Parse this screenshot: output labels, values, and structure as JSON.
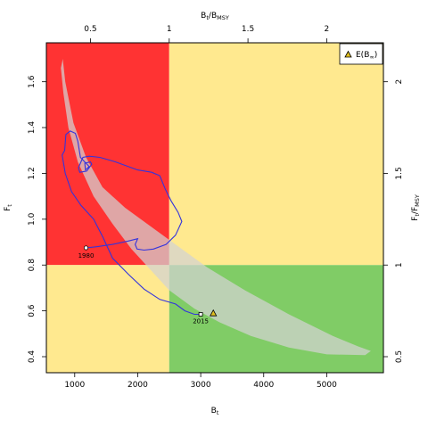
{
  "chart_data": {
    "type": "line",
    "title": "",
    "xlabel": "B",
    "xlabel_sub": "t",
    "ylabel": "F",
    "ylabel_sub": "t",
    "top_axis_label": {
      "main1": "B",
      "sub1": "t",
      "sep": "/B",
      "sub2": "MSY"
    },
    "right_axis_label": {
      "main1": "F",
      "sub1": "t",
      "sep": "/F",
      "sub2": "MSY"
    },
    "xlim": [
      550,
      5900
    ],
    "ylim": [
      0.33,
      1.77
    ],
    "bmsy": 2500,
    "fmsy": 0.8,
    "x_ticks": [
      1000,
      2000,
      3000,
      4000,
      5000
    ],
    "x_tick_labels": [
      "1000",
      "2000",
      "3000",
      "4000",
      "5000"
    ],
    "y_ticks": [
      0.4,
      0.6,
      0.8,
      1.0,
      1.2,
      1.4,
      1.6
    ],
    "y_tick_labels": [
      "0.4",
      "0.6",
      "0.8",
      "1.0",
      "1.2",
      "1.4",
      "1.6"
    ],
    "top_ticks": [
      0.5,
      1,
      1.5,
      2
    ],
    "top_tick_labels": [
      "0.5",
      "1",
      "1.5",
      "2"
    ],
    "right_ticks": [
      0.5,
      1,
      1.5,
      2
    ],
    "right_tick_labels": [
      "0.5",
      "1",
      "1.5",
      "2"
    ],
    "zones": {
      "red": "#ff3333",
      "yellow": "#ffe98f",
      "green": "#80cc66",
      "ellipse_fill": "#d3d3d3",
      "line_color": "#3333dd"
    },
    "trajectory": [
      [
        1180,
        0.875
      ],
      [
        1350,
        0.88
      ],
      [
        1600,
        0.89
      ],
      [
        1850,
        0.905
      ],
      [
        2000,
        0.915
      ],
      [
        1960,
        0.89
      ],
      [
        1990,
        0.87
      ],
      [
        2100,
        0.865
      ],
      [
        2250,
        0.87
      ],
      [
        2450,
        0.89
      ],
      [
        2600,
        0.93
      ],
      [
        2700,
        0.99
      ],
      [
        2640,
        1.03
      ],
      [
        2530,
        1.08
      ],
      [
        2440,
        1.13
      ],
      [
        2350,
        1.19
      ],
      [
        2220,
        1.205
      ],
      [
        2000,
        1.215
      ],
      [
        1650,
        1.25
      ],
      [
        1400,
        1.27
      ],
      [
        1230,
        1.275
      ],
      [
        1130,
        1.27
      ],
      [
        1060,
        1.225
      ],
      [
        1080,
        1.205
      ],
      [
        1190,
        1.21
      ],
      [
        1270,
        1.24
      ],
      [
        1250,
        1.25
      ],
      [
        1160,
        1.245
      ],
      [
        1170,
        1.215
      ],
      [
        1230,
        1.23
      ],
      [
        1090,
        1.27
      ],
      [
        1050,
        1.34
      ],
      [
        1010,
        1.375
      ],
      [
        930,
        1.385
      ],
      [
        860,
        1.37
      ],
      [
        840,
        1.3
      ],
      [
        800,
        1.28
      ],
      [
        850,
        1.2
      ],
      [
        950,
        1.12
      ],
      [
        1100,
        1.06
      ],
      [
        1300,
        1.0
      ],
      [
        1450,
        0.92
      ],
      [
        1600,
        0.83
      ],
      [
        1850,
        0.76
      ],
      [
        2100,
        0.695
      ],
      [
        2350,
        0.65
      ],
      [
        2600,
        0.63
      ],
      [
        2750,
        0.6
      ],
      [
        2900,
        0.585
      ],
      [
        3000,
        0.585
      ]
    ],
    "ellipse_outline": [
      [
        810,
        1.7
      ],
      [
        850,
        1.6
      ],
      [
        980,
        1.42
      ],
      [
        1180,
        1.27
      ],
      [
        1440,
        1.14
      ],
      [
        1800,
        1.05
      ],
      [
        2150,
        0.98
      ],
      [
        2600,
        0.89
      ],
      [
        3100,
        0.79
      ],
      [
        3700,
        0.69
      ],
      [
        4400,
        0.585
      ],
      [
        5100,
        0.49
      ],
      [
        5500,
        0.445
      ],
      [
        5700,
        0.425
      ],
      [
        5610,
        0.407
      ],
      [
        5000,
        0.41
      ],
      [
        4400,
        0.44
      ],
      [
        3800,
        0.49
      ],
      [
        3300,
        0.55
      ],
      [
        2900,
        0.61
      ],
      [
        2500,
        0.69
      ],
      [
        2200,
        0.78
      ],
      [
        1900,
        0.87
      ],
      [
        1600,
        0.98
      ],
      [
        1300,
        1.1
      ],
      [
        1050,
        1.25
      ],
      [
        900,
        1.4
      ],
      [
        820,
        1.55
      ],
      [
        780,
        1.66
      ],
      [
        810,
        1.7
      ]
    ],
    "start_point": {
      "x": 1180,
      "y": 0.875,
      "label": "1980"
    },
    "end_point": {
      "x": 3000,
      "y": 0.585,
      "label": "2015"
    },
    "expected_point": {
      "x": 3200,
      "y": 0.59
    },
    "legend": {
      "label": "E(B",
      "sub": "∞",
      "close": ")",
      "position": "top-right"
    }
  }
}
